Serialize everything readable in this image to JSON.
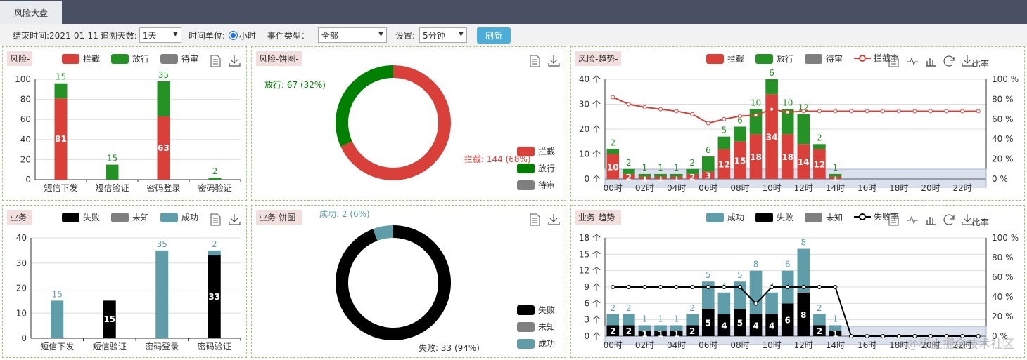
{
  "tab": {
    "label": "风险大盘"
  },
  "toolbar": {
    "end_time": "结束时间:2021-01-11",
    "lookback_label": "追溯天数:",
    "lookback_value": "1天",
    "time_unit_label": "时间单位:",
    "time_unit_value": "小时",
    "event_type_label": "事件类型：",
    "event_type_value": "全部",
    "setting_label": "设置:",
    "setting_value": "5分钟",
    "refresh_label": "刷新"
  },
  "icons": {
    "data_view": "document-icon",
    "download": "download-icon",
    "line": "line-chart-icon",
    "bar": "bar-chart-icon",
    "restore": "refresh-icon",
    "ratio_label": "比率"
  },
  "colors": {
    "intercept": "#d9403a",
    "pass": "#249224",
    "pending": "#7f7f7f",
    "fail": "#000000",
    "unknown": "#808080",
    "success": "#5f9ea8",
    "pie_pass": "#008000"
  },
  "watermark": "@稀土掘金技术社区",
  "chart_data": [
    {
      "id": "risk-bar",
      "type": "bar",
      "title": "风险-",
      "legend": [
        "拦截",
        "放行",
        "待审"
      ],
      "categories": [
        "短信下发",
        "短信验证",
        "密码登录",
        "密码验证"
      ],
      "series": [
        {
          "name": "拦截",
          "values": [
            81,
            0,
            63,
            0
          ]
        },
        {
          "name": "放行",
          "values": [
            15,
            15,
            35,
            2
          ]
        },
        {
          "name": "待审",
          "values": [
            0,
            0,
            0,
            0
          ]
        }
      ],
      "ylim": [
        0,
        100
      ],
      "yticks": [
        0,
        20,
        40,
        60,
        80,
        100
      ]
    },
    {
      "id": "risk-pie",
      "type": "pie",
      "title": "风险-饼图-",
      "legend": [
        "拦截",
        "放行",
        "待审"
      ],
      "slices": [
        {
          "name": "拦截",
          "value": 144,
          "label": "拦截: 144 (68%)"
        },
        {
          "name": "放行",
          "value": 67,
          "label": "放行: 67 (32%)"
        },
        {
          "name": "待审",
          "value": 0,
          "label": ""
        }
      ]
    },
    {
      "id": "risk-trend",
      "type": "bar",
      "title": "风险-趋势-",
      "legend": [
        "拦截",
        "放行",
        "待审",
        "拦截率"
      ],
      "x": [
        "00时",
        "01时",
        "02时",
        "03时",
        "04时",
        "05时",
        "06时",
        "07时",
        "08时",
        "09时",
        "10时",
        "11时",
        "12时",
        "13时",
        "14时",
        "15时",
        "16时",
        "17时",
        "18时",
        "19时",
        "20时",
        "21时",
        "22时",
        "23时"
      ],
      "xticks": [
        "00时",
        "02时",
        "04时",
        "06时",
        "08时",
        "10时",
        "12时",
        "14时",
        "16时",
        "18时",
        "20时",
        "22时"
      ],
      "series": [
        {
          "name": "拦截",
          "values": [
            10,
            2,
            1,
            1,
            1,
            2,
            3,
            12,
            15,
            18,
            34,
            18,
            14,
            12,
            1,
            0,
            0,
            0,
            0,
            0,
            0,
            0,
            0,
            0
          ]
        },
        {
          "name": "放行",
          "values": [
            2,
            2,
            1,
            1,
            1,
            2,
            6,
            5,
            6,
            10,
            6,
            10,
            12,
            2,
            1,
            0,
            0,
            0,
            0,
            0,
            0,
            0,
            0,
            0
          ]
        },
        {
          "name": "拦截率",
          "values": [
            82,
            75,
            72,
            70,
            68,
            65,
            56,
            60,
            63,
            64,
            70,
            67,
            68,
            68,
            68,
            68,
            68,
            68,
            68,
            68,
            68,
            68,
            68,
            68
          ]
        }
      ],
      "ylim": [
        0,
        40
      ],
      "yticks": [
        "0 个",
        "10 个",
        "20 个",
        "30 个",
        "40 个"
      ],
      "y2ticks": [
        "0 %",
        "20 %",
        "40 %",
        "60 %",
        "80 %",
        "100 %"
      ]
    },
    {
      "id": "biz-bar",
      "type": "bar",
      "title": "业务-",
      "legend": [
        "失败",
        "未知",
        "成功"
      ],
      "categories": [
        "短信下发",
        "短信验证",
        "密码登录",
        "密码验证"
      ],
      "series": [
        {
          "name": "失败",
          "values": [
            0,
            15,
            0,
            33
          ]
        },
        {
          "name": "未知",
          "values": [
            0,
            0,
            0,
            0
          ]
        },
        {
          "name": "成功",
          "values": [
            15,
            0,
            35,
            2
          ]
        }
      ],
      "ylim": [
        0,
        40
      ],
      "yticks": [
        0,
        10,
        20,
        30,
        40
      ]
    },
    {
      "id": "biz-pie",
      "type": "pie",
      "title": "业务-饼图-",
      "legend": [
        "失败",
        "未知",
        "成功"
      ],
      "slices": [
        {
          "name": "失败",
          "value": 33,
          "label": "失败: 33 (94%)"
        },
        {
          "name": "未知",
          "value": 0,
          "label": ""
        },
        {
          "name": "成功",
          "value": 2,
          "label": "成功: 2 (6%)"
        }
      ]
    },
    {
      "id": "biz-trend",
      "type": "bar",
      "title": "业务-趋势-",
      "legend": [
        "成功",
        "失败",
        "未知",
        "失败率"
      ],
      "x": [
        "00时",
        "01时",
        "02时",
        "03时",
        "04时",
        "05时",
        "06时",
        "07时",
        "08时",
        "09时",
        "10时",
        "11时",
        "12时",
        "13时",
        "14时",
        "15时",
        "16时",
        "17时",
        "18时",
        "19时",
        "20时",
        "21时",
        "22时",
        "23时"
      ],
      "xticks": [
        "00时",
        "02时",
        "04时",
        "06时",
        "08时",
        "10时",
        "12时",
        "14时",
        "16时",
        "18时",
        "20时",
        "22时"
      ],
      "series": [
        {
          "name": "失败",
          "values": [
            2,
            2,
            1,
            1,
            1,
            2,
            5,
            4,
            5,
            4,
            4,
            6,
            8,
            2,
            1,
            0,
            0,
            0,
            0,
            0,
            0,
            0,
            0,
            0
          ]
        },
        {
          "name": "成功",
          "values": [
            2,
            2,
            1,
            1,
            1,
            2,
            5,
            4,
            5,
            8,
            4,
            6,
            8,
            2,
            1,
            0,
            0,
            0,
            0,
            0,
            0,
            0,
            0,
            0
          ]
        },
        {
          "name": "失败率",
          "values": [
            50,
            50,
            50,
            50,
            50,
            50,
            50,
            50,
            50,
            33,
            50,
            50,
            50,
            50,
            50,
            0,
            0,
            0,
            0,
            0,
            0,
            0,
            0,
            0
          ]
        }
      ],
      "ylim": [
        0,
        18
      ],
      "yticks": [
        "0 个",
        "3 个",
        "6 个",
        "9 个",
        "12 个",
        "15 个",
        "18 个"
      ],
      "y2ticks": [
        "0 %",
        "20 %",
        "40 %",
        "60 %",
        "80 %",
        "100 %"
      ]
    }
  ]
}
